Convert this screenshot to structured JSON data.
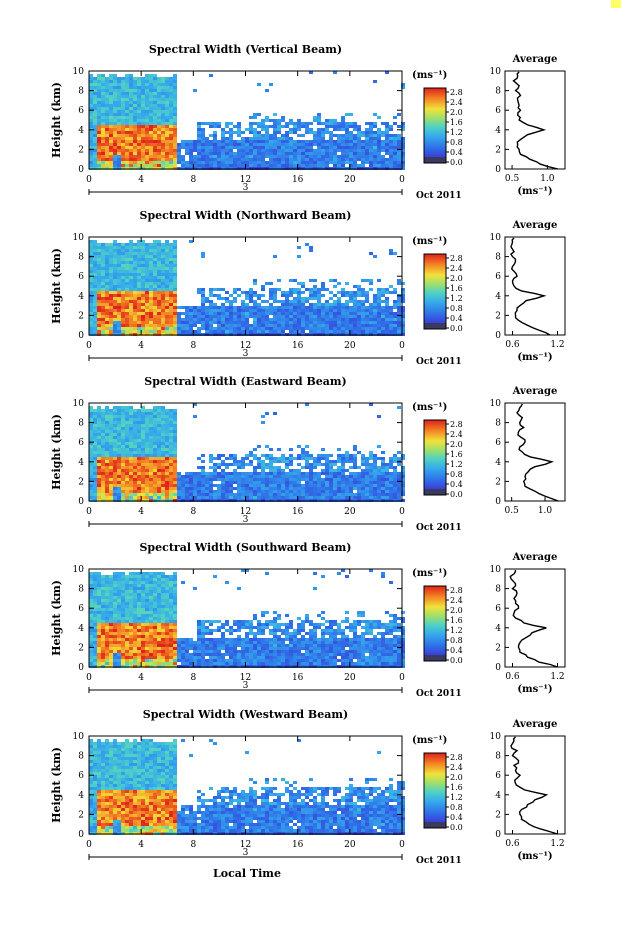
{
  "figure": {
    "x_axis_label": "Local Time",
    "date_label": "Oct 2011",
    "day_marker": "3",
    "height_axis_label": "Height (km)",
    "colorbar_unit": "(ms⁻¹)",
    "avg_title": "Average",
    "avg_unit": "(ms⁻¹)"
  },
  "chart_data": [
    {
      "type": "heatmap",
      "title": "Spectral Width (Vertical Beam)",
      "xlabel": "Local Time",
      "ylabel": "Height (km)",
      "x_ticks": [
        "0",
        "4",
        "8",
        "12",
        "16",
        "20",
        "0"
      ],
      "y_ticks": [
        "0",
        "2",
        "4",
        "6",
        "8",
        "10"
      ],
      "xlim": [
        0,
        24
      ],
      "ylim": [
        0,
        10
      ],
      "colorbar_ticks": [
        "0.0",
        "0.4",
        "0.8",
        "1.2",
        "1.6",
        "2.0",
        "2.4",
        "2.8"
      ],
      "colorbar_range": [
        0,
        3.0
      ],
      "avg_profile": {
        "title": "Average",
        "xlabel": "(ms⁻¹)",
        "x_ticks": [
          "0.5",
          "1.0"
        ],
        "xlim": [
          0.4,
          1.25
        ],
        "heights": [
          0,
          0.5,
          1,
          1.5,
          2,
          2.5,
          3,
          3.5,
          4,
          4.5,
          5,
          5.5,
          6,
          6.5,
          7,
          7.5,
          8,
          8.5,
          9,
          9.5,
          9.9
        ],
        "values": [
          1.15,
          0.9,
          0.75,
          0.62,
          0.6,
          0.58,
          0.62,
          0.72,
          0.95,
          0.72,
          0.6,
          0.58,
          0.62,
          0.6,
          0.58,
          0.62,
          0.55,
          0.6,
          0.52,
          0.58,
          0.6
        ]
      }
    },
    {
      "type": "heatmap",
      "title": "Spectral Width (Northward Beam)",
      "xlabel": "Local Time",
      "ylabel": "Height (km)",
      "x_ticks": [
        "0",
        "4",
        "8",
        "12",
        "16",
        "20",
        "0"
      ],
      "y_ticks": [
        "0",
        "2",
        "4",
        "6",
        "8",
        "10"
      ],
      "xlim": [
        0,
        24
      ],
      "ylim": [
        0,
        10
      ],
      "colorbar_ticks": [
        "0.0",
        "0.4",
        "0.8",
        "1.2",
        "1.6",
        "2.0",
        "2.4",
        "2.8"
      ],
      "colorbar_range": [
        0,
        3.0
      ],
      "avg_profile": {
        "title": "Average",
        "xlabel": "(ms⁻¹)",
        "x_ticks": [
          "0.6",
          "1.2"
        ],
        "xlim": [
          0.5,
          1.3
        ],
        "heights": [
          0,
          0.5,
          1,
          1.5,
          2,
          2.5,
          3,
          3.5,
          4,
          4.5,
          5,
          5.5,
          6,
          6.5,
          7,
          7.5,
          8,
          8.5,
          9,
          9.5,
          9.9
        ],
        "values": [
          1.1,
          0.95,
          0.8,
          0.68,
          0.64,
          0.66,
          0.7,
          0.78,
          1.02,
          0.72,
          0.62,
          0.6,
          0.66,
          0.62,
          0.6,
          0.64,
          0.6,
          0.62,
          0.58,
          0.6,
          0.62
        ]
      }
    },
    {
      "type": "heatmap",
      "title": "Spectral Width (Eastward Beam)",
      "xlabel": "Local Time",
      "ylabel": "Height (km)",
      "x_ticks": [
        "0",
        "4",
        "8",
        "12",
        "16",
        "20",
        "0"
      ],
      "y_ticks": [
        "0",
        "2",
        "4",
        "6",
        "8",
        "10"
      ],
      "xlim": [
        0,
        24
      ],
      "ylim": [
        0,
        10
      ],
      "colorbar_ticks": [
        "0.0",
        "0.4",
        "0.8",
        "1.2",
        "1.6",
        "2.0",
        "2.4",
        "2.8"
      ],
      "colorbar_range": [
        0,
        3.0
      ],
      "avg_profile": {
        "title": "Average",
        "xlabel": "",
        "x_ticks": [
          "0.5",
          "1.0"
        ],
        "xlim": [
          0.4,
          1.3
        ],
        "heights": [
          0,
          0.5,
          1,
          1.5,
          2,
          2.5,
          3,
          3.5,
          4,
          4.5,
          5,
          5.5,
          6,
          6.5,
          7,
          7.5,
          8,
          8.5,
          9,
          9.5,
          9.9
        ],
        "values": [
          1.2,
          1.0,
          0.85,
          0.7,
          0.68,
          0.7,
          0.75,
          0.85,
          1.1,
          0.78,
          0.66,
          0.62,
          0.7,
          0.64,
          0.6,
          0.68,
          0.62,
          0.66,
          0.58,
          0.62,
          0.66
        ]
      }
    },
    {
      "type": "heatmap",
      "title": "Spectral Width (Southward Beam)",
      "xlabel": "Local Time",
      "ylabel": "Height (km)",
      "x_ticks": [
        "0",
        "4",
        "8",
        "12",
        "16",
        "20",
        "0"
      ],
      "y_ticks": [
        "0",
        "2",
        "4",
        "6",
        "8",
        "10"
      ],
      "xlim": [
        0,
        24
      ],
      "ylim": [
        0,
        10
      ],
      "colorbar_ticks": [
        "0.0",
        "0.4",
        "0.8",
        "1.2",
        "1.6",
        "2.0",
        "2.4",
        "2.8"
      ],
      "colorbar_range": [
        0,
        3.0
      ],
      "avg_profile": {
        "title": "Average",
        "xlabel": "(ms⁻¹)",
        "x_ticks": [
          "0.6",
          "1.2"
        ],
        "xlim": [
          0.5,
          1.3
        ],
        "heights": [
          0,
          0.5,
          1,
          1.5,
          2,
          2.5,
          3,
          3.5,
          4,
          4.5,
          5,
          5.5,
          6,
          6.5,
          7,
          7.5,
          8,
          8.5,
          9,
          9.5,
          9.9
        ],
        "values": [
          1.2,
          0.95,
          0.8,
          0.7,
          0.68,
          0.7,
          0.78,
          0.86,
          1.05,
          0.75,
          0.64,
          0.62,
          0.68,
          0.64,
          0.62,
          0.66,
          0.6,
          0.64,
          0.58,
          0.62,
          0.64
        ]
      }
    },
    {
      "type": "heatmap",
      "title": "Spectral Width (Westward Beam)",
      "xlabel": "Local Time",
      "ylabel": "Height (km)",
      "x_ticks": [
        "0",
        "4",
        "8",
        "12",
        "16",
        "20",
        "0"
      ],
      "y_ticks": [
        "0",
        "2",
        "4",
        "6",
        "8",
        "10"
      ],
      "xlim": [
        0,
        24
      ],
      "ylim": [
        0,
        10
      ],
      "colorbar_ticks": [
        "0.0",
        "0.4",
        "0.8",
        "1.2",
        "1.6",
        "2.0",
        "2.4",
        "2.8"
      ],
      "colorbar_range": [
        0,
        3.0
      ],
      "avg_profile": {
        "title": "Average",
        "xlabel": "(ms⁻¹)",
        "x_ticks": [
          "0.6",
          "1.2"
        ],
        "xlim": [
          0.5,
          1.3
        ],
        "heights": [
          0,
          0.5,
          1,
          1.5,
          2,
          2.5,
          3,
          3.5,
          4,
          4.5,
          5,
          5.5,
          6,
          6.5,
          7,
          7.5,
          8,
          8.5,
          9,
          9.5,
          9.9
        ],
        "values": [
          1.2,
          0.98,
          0.82,
          0.72,
          0.7,
          0.72,
          0.8,
          0.9,
          1.05,
          0.76,
          0.65,
          0.63,
          0.7,
          0.64,
          0.62,
          0.68,
          0.6,
          0.66,
          0.58,
          0.62,
          0.64
        ]
      }
    }
  ]
}
